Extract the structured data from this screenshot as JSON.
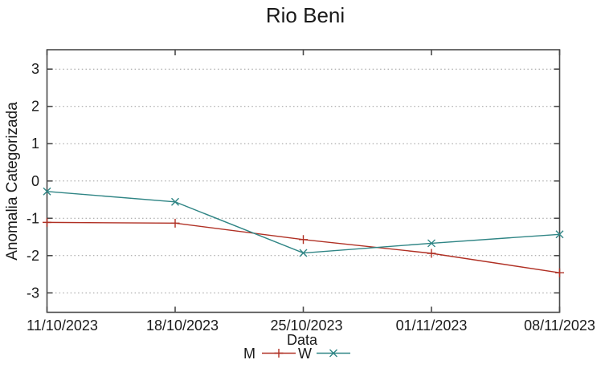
{
  "title": "Rio Beni",
  "colors": {
    "background": "#ffffff",
    "frame": "#4a4a4a",
    "grid": "#9a9a9a",
    "text": "#1a1a1a",
    "series_m": "#b03024",
    "series_w": "#2f8585"
  },
  "chart_data": {
    "type": "line",
    "title": "Rio Beni",
    "xlabel": "Data",
    "ylabel": "Anomalia Categorizada",
    "x": [
      "11/10/2023",
      "18/10/2023",
      "25/10/2023",
      "01/11/2023",
      "08/11/2023"
    ],
    "series": [
      {
        "name": "M",
        "marker": "plus",
        "color": "#b03024",
        "values": [
          -1.11,
          -1.13,
          -1.57,
          -1.94,
          -2.46
        ]
      },
      {
        "name": "W",
        "marker": "cross",
        "color": "#2f8585",
        "values": [
          -0.28,
          -0.56,
          -1.93,
          -1.67,
          -1.43
        ]
      }
    ],
    "yticks": [
      3,
      2,
      1,
      0,
      -1,
      -2,
      -3
    ],
    "ylim": [
      -3.52,
      3.52
    ],
    "grid": "horizontal-dotted",
    "legend_position": "bottom-center"
  }
}
